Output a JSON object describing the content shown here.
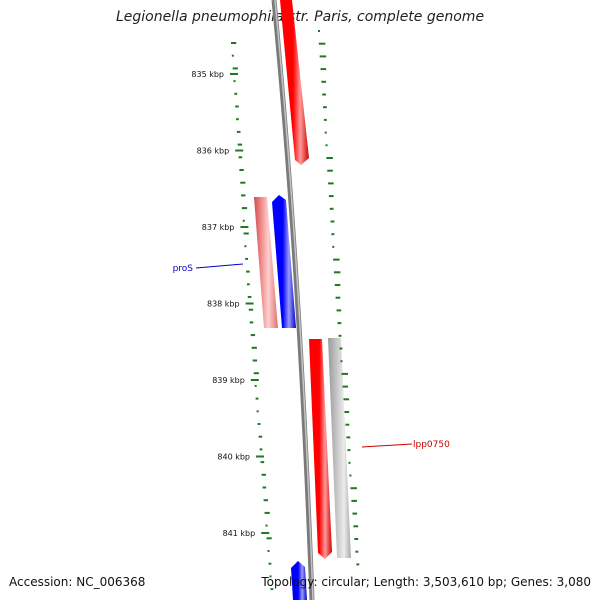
{
  "title": "Legionella pneumophila str. Paris, complete genome",
  "accession_text": "Accession: NC_006368",
  "summary_text": "Topology: circular; Length: 3,503,610 bp; Genes: 3,080",
  "ruler": {
    "ticks": [
      {
        "label": "835 kbp"
      },
      {
        "label": "836 kbp"
      },
      {
        "label": "837 kbp"
      },
      {
        "label": "838 kbp"
      },
      {
        "label": "839 kbp"
      },
      {
        "label": "840 kbp"
      },
      {
        "label": "841 kbp"
      }
    ]
  },
  "genes": [
    {
      "name": "proS",
      "strand": "forward",
      "color": "#0000ee"
    },
    {
      "name": "lpp0750",
      "strand": "reverse",
      "color": "#ee0000"
    }
  ],
  "colors": {
    "forward_strand": "#0000ff",
    "reverse_strand": "#ff0000",
    "backbone": "#7a7a7a",
    "gc_skew": "#1f7a1f",
    "cds_pink": "#f08a8a",
    "cds_grey": "#c0c0c0"
  }
}
